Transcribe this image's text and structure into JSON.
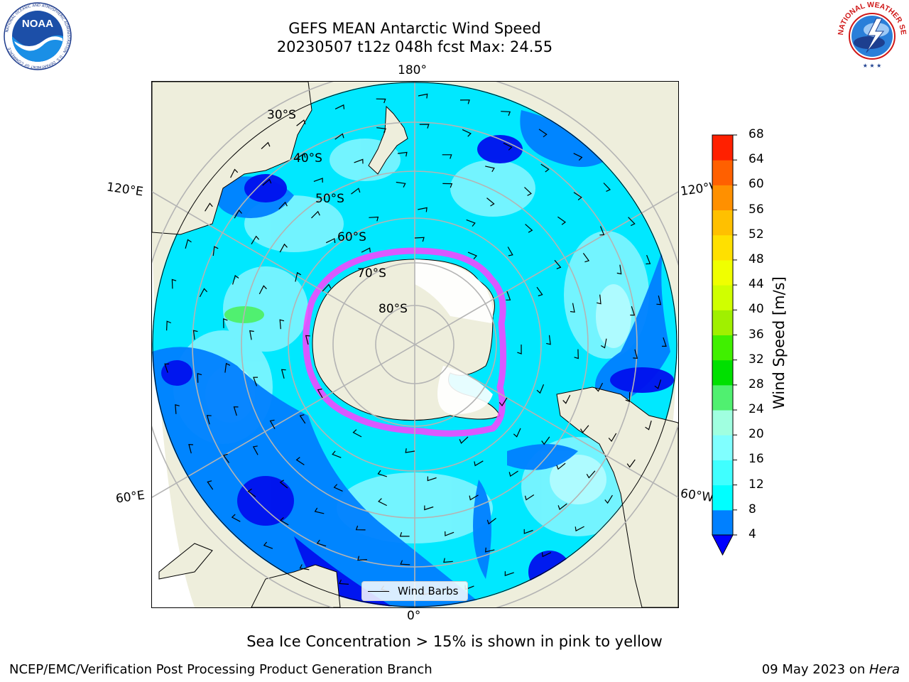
{
  "title": {
    "line1": "GEFS MEAN Antarctic Wind Speed",
    "line2": "20230507 t12z 048h fcst   Max: 24.55"
  },
  "map": {
    "projection": "south-polar-stereographic",
    "lon_labels": {
      "top": "180°",
      "bottom": "0°",
      "upper_left": "120°E",
      "upper_right": "120°W",
      "lower_left": "60°E",
      "lower_right": "60°W"
    },
    "lat_labels": [
      "30°S",
      "40°S",
      "50°S",
      "60°S",
      "70°S",
      "80°S"
    ],
    "legend": {
      "label": "Wind Barbs",
      "line_color": "#000000"
    }
  },
  "colorbar": {
    "label": "Wind Speed [m/s]",
    "ticks": [
      "4",
      "8",
      "12",
      "16",
      "20",
      "24",
      "28",
      "32",
      "36",
      "40",
      "44",
      "48",
      "52",
      "56",
      "60",
      "64",
      "68"
    ],
    "colors": [
      "#0000ff",
      "#0080ff",
      "#00ffff",
      "#40ffff",
      "#80ffff",
      "#a0ffe0",
      "#50f070",
      "#00e000",
      "#40f000",
      "#a0f000",
      "#d0ff00",
      "#f0ff00",
      "#ffe000",
      "#ffc000",
      "#ff9000",
      "#ff6000",
      "#ff2000",
      "#ff0000"
    ],
    "extend": "min"
  },
  "caption": "Sea Ice Concentration > 15% is shown in pink to yellow",
  "footer": {
    "left": "NCEP/EMC/Verification Post Processing Product Generation Branch",
    "date": "09 May 2023 on ",
    "host": "Hera"
  },
  "logos": {
    "noaa": {
      "text": "NOAA",
      "ring_text": "NATIONAL OCEANIC AND ATMOSPHERIC ADMINISTRATION · U.S. DEPARTMENT OF COMMERCE"
    },
    "nws": {
      "ring_text": "NATIONAL WEATHER SERVICE"
    }
  },
  "colors": {
    "land": "#eeeedc",
    "ocean_base": "#00e8ff",
    "ice": "#ff40ff",
    "grid": "#b4b4b4"
  }
}
